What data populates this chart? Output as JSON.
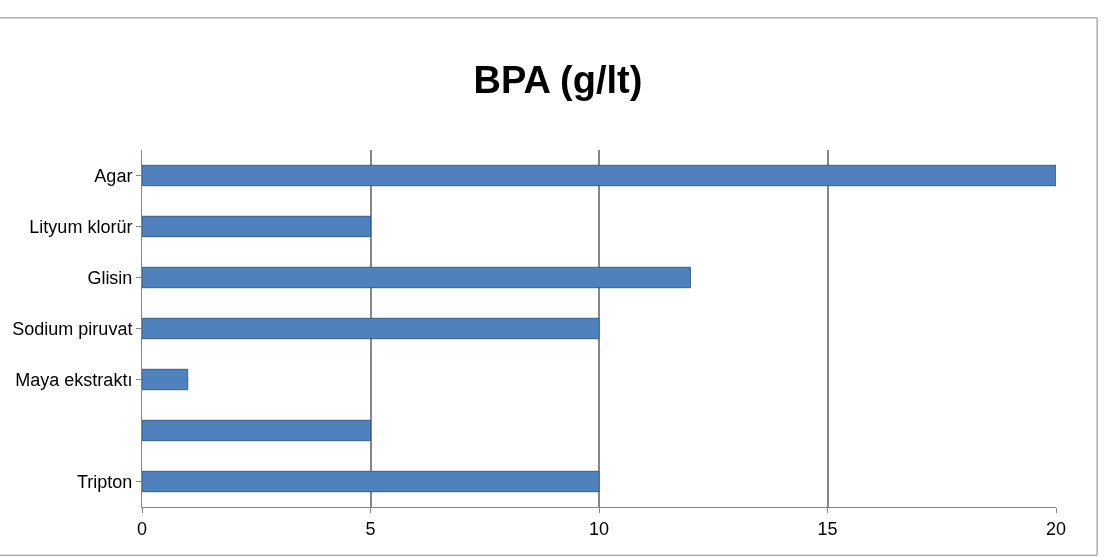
{
  "chart_data": {
    "type": "bar",
    "orientation": "horizontal",
    "title": "BPA (g/lt)",
    "categories": [
      "Agar",
      "Lityum klorür",
      "Glisin",
      "Sodium piruvat",
      "Maya ekstraktı",
      null,
      "Tripton"
    ],
    "values": [
      20,
      5,
      12,
      10,
      1,
      5,
      10
    ],
    "color": "#4f81bd",
    "xlim": [
      0,
      20
    ],
    "xticks": [
      0,
      5,
      10,
      15,
      20
    ],
    "grid": "x"
  }
}
